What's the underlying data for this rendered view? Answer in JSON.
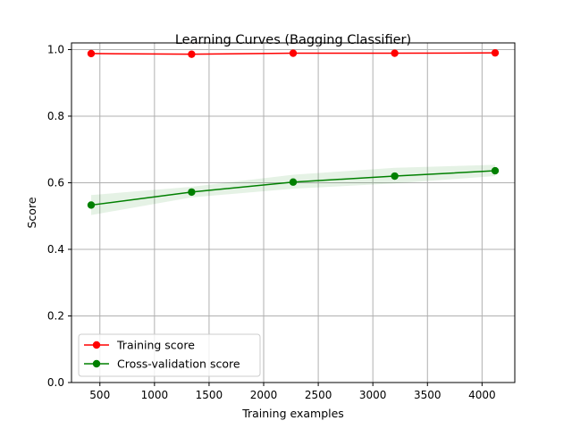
{
  "chart_data": {
    "type": "line",
    "title": "Learning Curves (Bagging Classifier)",
    "xlabel": "Training examples",
    "ylabel": "Score",
    "xlim": [
      240,
      4300
    ],
    "ylim": [
      0.0,
      1.02
    ],
    "xticks": [
      500,
      1000,
      1500,
      2000,
      2500,
      3000,
      3500,
      4000
    ],
    "yticks": [
      0.0,
      0.2,
      0.4,
      0.6,
      0.8,
      1.0
    ],
    "x": [
      420,
      1340,
      2270,
      3200,
      4120
    ],
    "grid": true,
    "legend_position": "lower-left",
    "series": [
      {
        "name": "Training score",
        "color": "#ff0000",
        "values": [
          0.988,
          0.986,
          0.989,
          0.989,
          0.99
        ],
        "band_low": [
          0.986,
          0.984,
          0.987,
          0.987,
          0.988
        ],
        "band_high": [
          0.99,
          0.988,
          0.991,
          0.991,
          0.992
        ]
      },
      {
        "name": "Cross-validation score",
        "color": "#008000",
        "values": [
          0.533,
          0.572,
          0.602,
          0.62,
          0.636
        ],
        "band_low": [
          0.503,
          0.556,
          0.582,
          0.598,
          0.62
        ],
        "band_high": [
          0.563,
          0.588,
          0.624,
          0.645,
          0.654
        ]
      }
    ]
  }
}
